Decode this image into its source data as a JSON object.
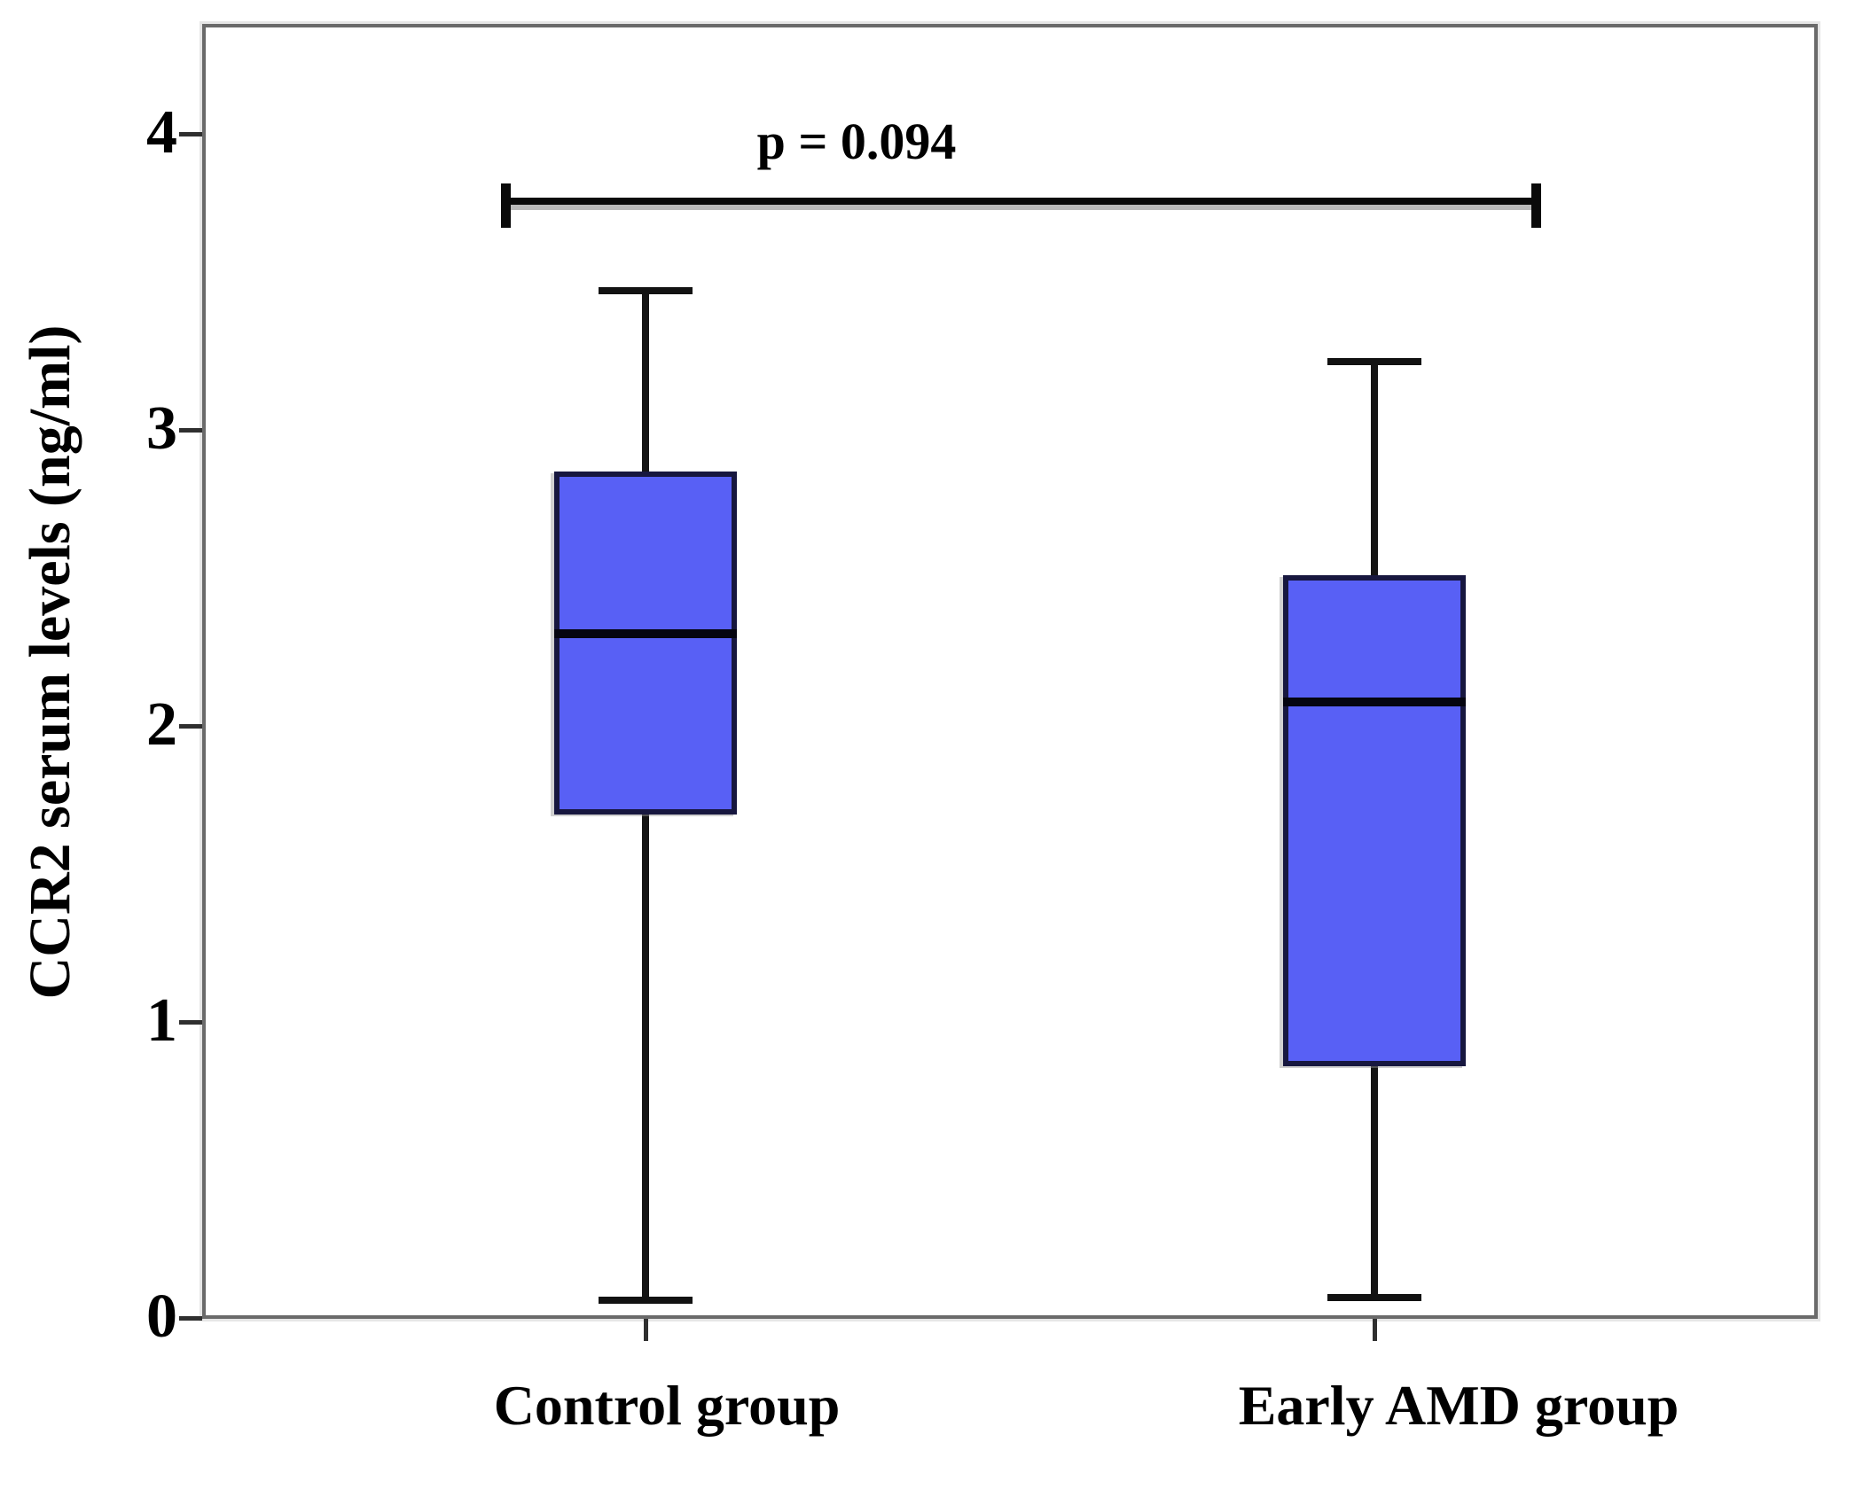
{
  "chart_data": {
    "type": "boxplot",
    "title": "",
    "xlabel": "",
    "ylabel": "CCR2 serum levels (ng/ml)",
    "ylim": [
      0,
      4.4
    ],
    "yticks": [
      0,
      1,
      2,
      3,
      4
    ],
    "grid": false,
    "legend": "none",
    "categories": [
      "Control group",
      "Early AMD group"
    ],
    "series": [
      {
        "name": "Control group",
        "min": 0.06,
        "q1": 1.7,
        "median": 2.31,
        "q3": 2.86,
        "max": 3.47
      },
      {
        "name": "Early AMD group",
        "min": 0.07,
        "q1": 0.85,
        "median": 2.08,
        "q3": 2.51,
        "max": 3.23
      }
    ],
    "annotation": {
      "text": "p = 0.094",
      "compares": [
        "Control group",
        "Early AMD group"
      ]
    },
    "colors": {
      "box_fill": "#5860f5",
      "box_border": "#17173f",
      "median": "#050510",
      "whisker": "#141414",
      "frame": "#6a6a6a",
      "text": "#000000",
      "background": "#ffffff"
    }
  }
}
